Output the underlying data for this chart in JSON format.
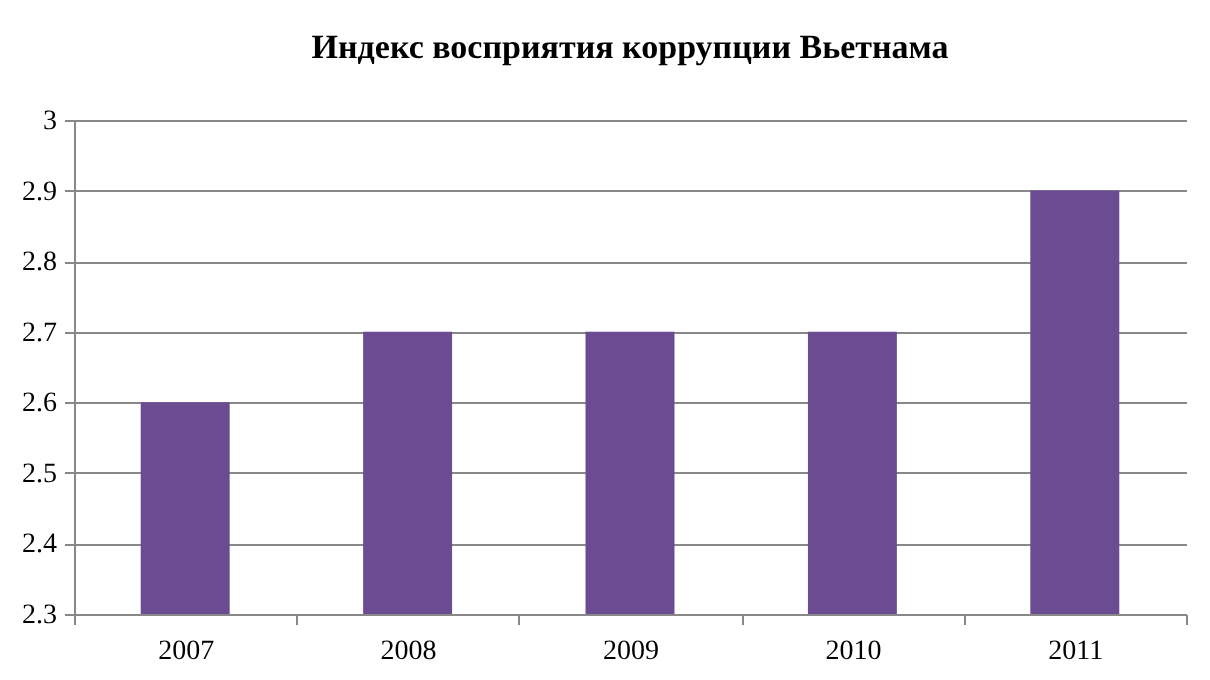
{
  "chart_data": {
    "type": "bar",
    "title": "Индекс  восприятия коррупции  Вьетнама",
    "categories": [
      "2007",
      "2008",
      "2009",
      "2010",
      "2011"
    ],
    "values": [
      2.6,
      2.7,
      2.7,
      2.7,
      2.9
    ],
    "color": "#6b4c93",
    "ylim": [
      2.3,
      3
    ],
    "yticks": [
      2.3,
      2.4,
      2.5,
      2.6,
      2.7,
      2.8,
      2.9,
      3
    ],
    "grid": "y"
  }
}
